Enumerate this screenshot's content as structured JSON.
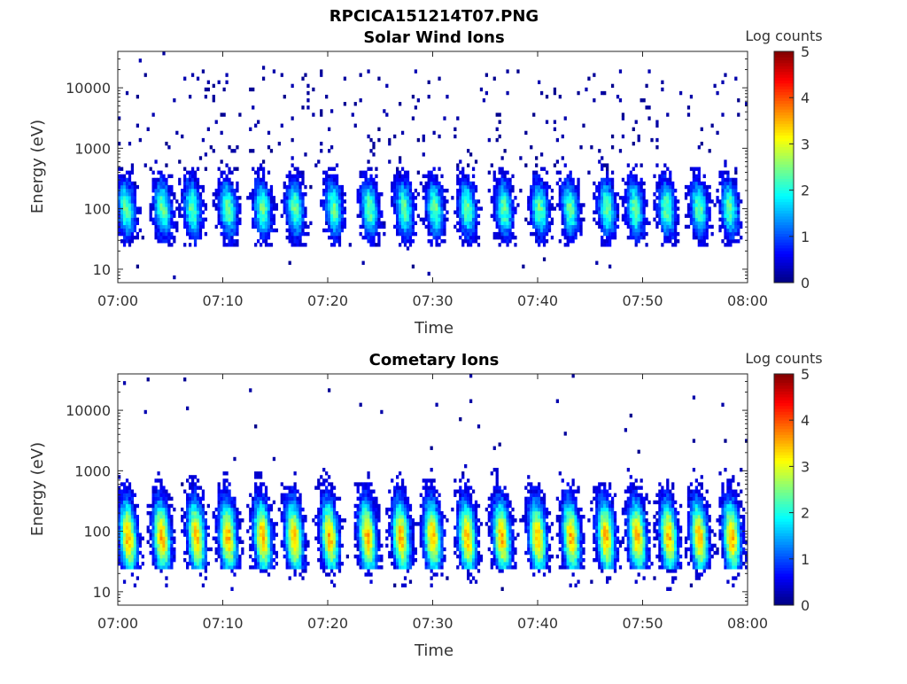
{
  "figure_title": "RPCICA151214T07.PNG",
  "colors": {
    "background": "#ffffff",
    "axis": "#262626",
    "colormap": "jet"
  },
  "chart_data": [
    {
      "type": "heatmap",
      "title": "Solar Wind Ions",
      "xlabel": "Time",
      "ylabel": "Energy (eV)",
      "x_ticks": [
        "07:00",
        "07:10",
        "07:20",
        "07:30",
        "07:40",
        "07:50",
        "08:00"
      ],
      "y_ticks": [
        "10",
        "100",
        "1000",
        "10000"
      ],
      "y_scale": "log",
      "xlim": [
        "07:00",
        "08:00"
      ],
      "ylim": [
        6,
        40000
      ],
      "colorbar": {
        "label": "Log counts",
        "ticks": [
          "0",
          "1",
          "2",
          "3",
          "4",
          "5"
        ],
        "range": [
          0,
          5
        ]
      },
      "sweep_centers_min": [
        0.8,
        4.3,
        7.1,
        10.5,
        13.8,
        16.9,
        20.6,
        24.0,
        27.3,
        30.2,
        33.3,
        36.8,
        40.2,
        43.1,
        46.6,
        49.3,
        52.3,
        55.4,
        58.3
      ],
      "peak_energy_eV": 100,
      "peak_log_counts": 2.4,
      "background": "sparse single counts (log counts ~0) scattered between 500 and 20000 eV"
    },
    {
      "type": "heatmap",
      "title": "Cometary Ions",
      "xlabel": "Time",
      "ylabel": "Energy (eV)",
      "x_ticks": [
        "07:00",
        "07:10",
        "07:20",
        "07:30",
        "07:40",
        "07:50",
        "08:00"
      ],
      "y_ticks": [
        "10",
        "100",
        "1000",
        "10000"
      ],
      "y_scale": "log",
      "xlim": [
        "07:00",
        "08:00"
      ],
      "ylim": [
        6,
        40000
      ],
      "colorbar": {
        "label": "Log counts",
        "ticks": [
          "0",
          "1",
          "2",
          "3",
          "4",
          "5"
        ],
        "range": [
          0,
          5
        ]
      },
      "sweep_centers_min": [
        1.0,
        4.2,
        7.5,
        10.5,
        13.8,
        16.8,
        20.2,
        23.8,
        27.0,
        30.0,
        33.3,
        36.6,
        40.0,
        43.2,
        46.5,
        49.5,
        52.5,
        55.4,
        58.5
      ],
      "peak_energy_eV": 80,
      "peak_log_counts": 3.5,
      "background": "very sparse counts above 3000 eV"
    }
  ]
}
